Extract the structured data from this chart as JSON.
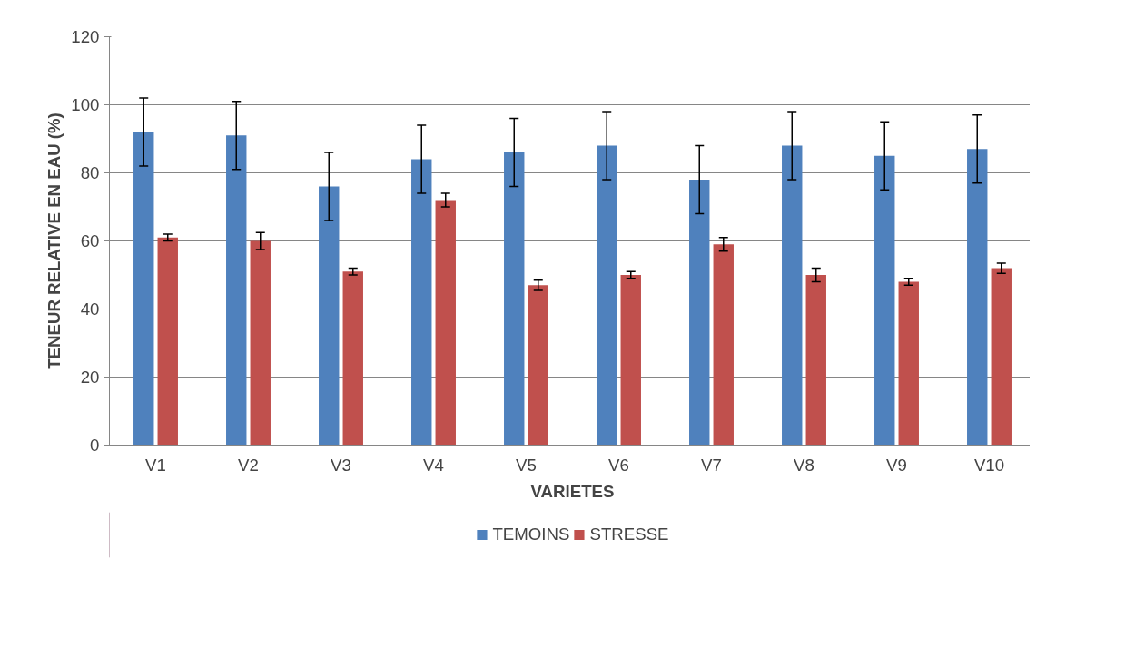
{
  "chart_data": {
    "type": "bar",
    "xlabel": "VARIETES",
    "ylabel": "TENEUR RELATIVE EN EAU (%)",
    "categories": [
      "V1",
      "V2",
      "V3",
      "V4",
      "V5",
      "V6",
      "V7",
      "V8",
      "V9",
      "V10"
    ],
    "series": [
      {
        "name": "TEMOINS",
        "color": "#4f81bd",
        "values": [
          92,
          91,
          76,
          84,
          86,
          88,
          78,
          88,
          85,
          87
        ],
        "errors": [
          10,
          10,
          10,
          10,
          10,
          10,
          10,
          10,
          10,
          10
        ]
      },
      {
        "name": "STRESSE",
        "color": "#c0504d",
        "values": [
          61,
          60,
          51,
          72,
          47,
          50,
          59,
          50,
          48,
          52
        ],
        "errors": [
          1,
          2.5,
          1,
          2,
          1.5,
          1,
          2,
          2,
          1,
          1.5
        ]
      }
    ],
    "ylim": [
      0,
      120
    ],
    "yticks": [
      0,
      20,
      40,
      60,
      80,
      100,
      120
    ],
    "grid": "y",
    "legend": "bottom"
  }
}
